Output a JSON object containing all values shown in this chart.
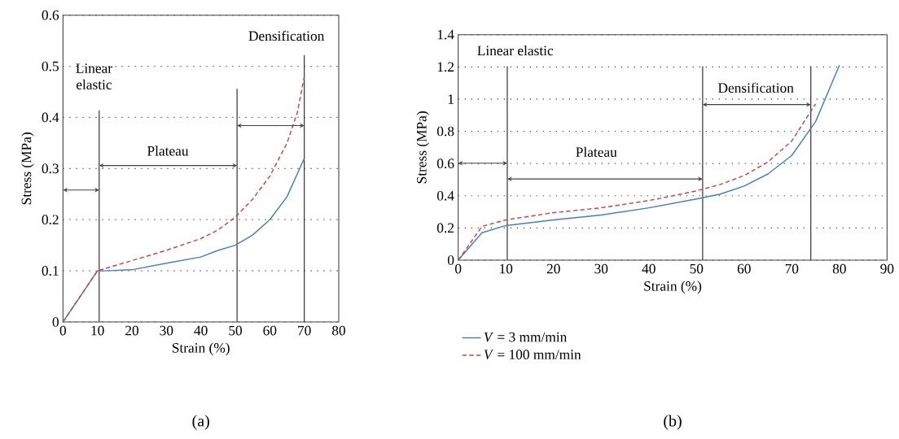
{
  "chart_data": [
    {
      "type": "line",
      "xlabel": "Strain (%)",
      "ylabel": "Stress (MPa)",
      "xlim": [
        0,
        80
      ],
      "ylim": [
        0,
        0.6
      ],
      "xticks": [
        0,
        10,
        20,
        30,
        40,
        50,
        60,
        70,
        80
      ],
      "yticks": [
        0,
        0.1,
        0.2,
        0.3,
        0.4,
        0.5,
        0.6
      ],
      "grid": "y",
      "series": [
        {
          "color": "#4a7ebb",
          "line_style": "solid",
          "x": [
            0,
            5,
            10,
            12,
            20,
            30,
            40,
            45,
            50,
            55,
            60,
            65,
            70
          ],
          "values": [
            0,
            0.05,
            0.1,
            0.1,
            0.102,
            0.115,
            0.127,
            0.14,
            0.15,
            0.17,
            0.2,
            0.245,
            0.32
          ]
        },
        {
          "color": "#be4b48",
          "line_style": "dashed",
          "x": [
            0,
            10,
            15,
            20,
            30,
            40,
            45,
            50,
            55,
            60,
            65,
            68,
            70
          ],
          "values": [
            0,
            0.1,
            0.11,
            0.12,
            0.14,
            0.163,
            0.18,
            0.205,
            0.24,
            0.285,
            0.35,
            0.41,
            0.48
          ]
        }
      ],
      "ref_lines": [
        {
          "axis": "x",
          "value": 10.5
        },
        {
          "axis": "x",
          "value": 50.5
        },
        {
          "axis": "x",
          "value": 70
        }
      ],
      "annotations": [
        "Linear elastic",
        "Plateau",
        "Densification",
        "(a)"
      ]
    },
    {
      "type": "line",
      "xlabel": "Strain (%)",
      "ylabel": "Stress (MPa)",
      "xlim": [
        0,
        90
      ],
      "ylim": [
        0,
        1.4
      ],
      "xticks": [
        0,
        10,
        20,
        30,
        40,
        50,
        60,
        70,
        80,
        90
      ],
      "yticks": [
        0,
        0.2,
        0.4,
        0.6,
        0.8,
        1,
        1.2,
        1.4
      ],
      "grid": "y",
      "legend": "bottom",
      "series": [
        {
          "name": "*V* = 3 mm/min",
          "color": "#4a7ebb",
          "line_style": "solid",
          "x": [
            0,
            5,
            10,
            20,
            30,
            40,
            50,
            55,
            60,
            65,
            70,
            75,
            80
          ],
          "values": [
            0,
            0.17,
            0.215,
            0.25,
            0.28,
            0.325,
            0.38,
            0.41,
            0.46,
            0.535,
            0.65,
            0.86,
            1.21
          ]
        },
        {
          "name": "*V* = 100 mm/min",
          "color": "#be4b48",
          "line_style": "dashed",
          "x": [
            0,
            5,
            10,
            20,
            30,
            40,
            50,
            55,
            60,
            65,
            70,
            75
          ],
          "values": [
            0,
            0.21,
            0.25,
            0.295,
            0.325,
            0.37,
            0.43,
            0.47,
            0.525,
            0.61,
            0.74,
            0.97
          ]
        }
      ],
      "ref_lines": [
        {
          "axis": "x",
          "value": 10.3
        },
        {
          "axis": "x",
          "value": 51.3
        },
        {
          "axis": "x",
          "value": 74
        }
      ],
      "annotations": [
        "Linear elastic",
        "Plateau",
        "Densification",
        "(b)"
      ]
    }
  ]
}
